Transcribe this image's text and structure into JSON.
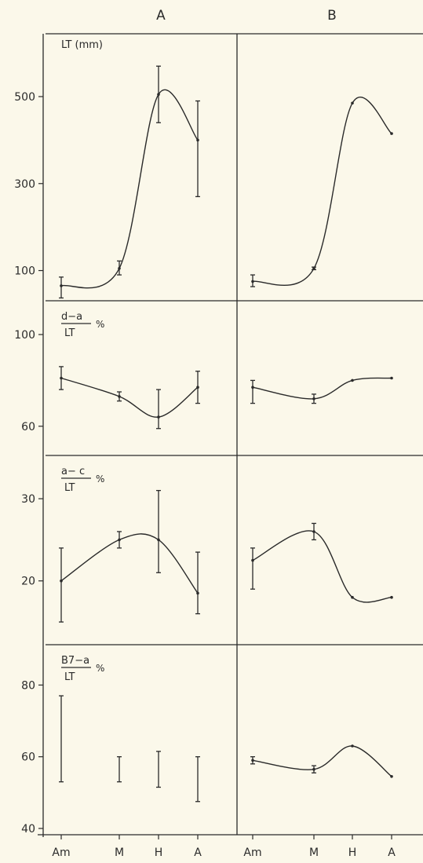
{
  "column_headers": [
    "A",
    "B"
  ],
  "x_categories": [
    "Am",
    "M",
    "H",
    "A"
  ],
  "chart_data": [
    {
      "type": "line",
      "panel": "LT",
      "title": "LT (mm)",
      "y_ticks": [
        100,
        300,
        500
      ],
      "ylim": [
        45,
        630
      ],
      "columns": [
        {
          "name": "A",
          "points": [
            65,
            105,
            505,
            400
          ],
          "errors": [
            [
              37,
              85
            ],
            [
              90,
              122
            ],
            [
              440,
              570
            ],
            [
              270,
              490
            ]
          ]
        },
        {
          "name": "B",
          "points": [
            75,
            105,
            485,
            415
          ],
          "errors": [
            [
              63,
              90
            ],
            [
              102,
              108
            ],
            null,
            null
          ]
        }
      ]
    },
    {
      "type": "line",
      "panel": "d-a/LT",
      "title": {
        "num": "d−a",
        "den": "LT",
        "unit": "%"
      },
      "y_ticks": [
        60,
        100
      ],
      "ylim": [
        50,
        112
      ],
      "columns": [
        {
          "name": "A",
          "points": [
            81,
            73,
            64,
            77
          ],
          "errors": [
            [
              76,
              86
            ],
            [
              71,
              75
            ],
            [
              59,
              76
            ],
            [
              70,
              84
            ]
          ]
        },
        {
          "name": "B",
          "points": [
            77,
            72,
            80,
            81
          ],
          "errors": [
            [
              70,
              80
            ],
            [
              70,
              74
            ],
            null,
            null
          ]
        }
      ]
    },
    {
      "type": "line",
      "panel": "a-c/LT",
      "title": {
        "num": "a− c",
        "den": "LT",
        "unit": "%"
      },
      "y_ticks": [
        20,
        30
      ],
      "ylim": [
        13,
        34.5
      ],
      "columns": [
        {
          "name": "A",
          "points": [
            20,
            25,
            25,
            18.5
          ],
          "errors": [
            [
              15,
              24
            ],
            [
              24,
              26
            ],
            [
              21,
              31
            ],
            [
              16,
              23.5
            ]
          ]
        },
        {
          "name": "B",
          "points": [
            22.5,
            26,
            18,
            18
          ],
          "errors": [
            [
              19,
              24
            ],
            [
              25,
              27
            ],
            null,
            null
          ]
        }
      ]
    },
    {
      "type": "line",
      "panel": "B7-a/LT",
      "title": {
        "num": "B7−a",
        "den": "LT",
        "unit": "%"
      },
      "y_ticks": [
        40,
        60,
        80
      ],
      "ylim": [
        40,
        89.5
      ],
      "columns": [
        {
          "name": "A",
          "points": [
            null,
            null,
            null,
            null
          ],
          "errors": [
            [
              53,
              77
            ],
            [
              53,
              60
            ],
            [
              51.5,
              61.5
            ],
            [
              47.5,
              60
            ]
          ]
        },
        {
          "name": "B",
          "points": [
            59,
            56.5,
            63,
            54.5
          ],
          "errors": [
            [
              58,
              60
            ],
            [
              55.5,
              57.5
            ],
            null,
            null
          ]
        }
      ]
    }
  ]
}
